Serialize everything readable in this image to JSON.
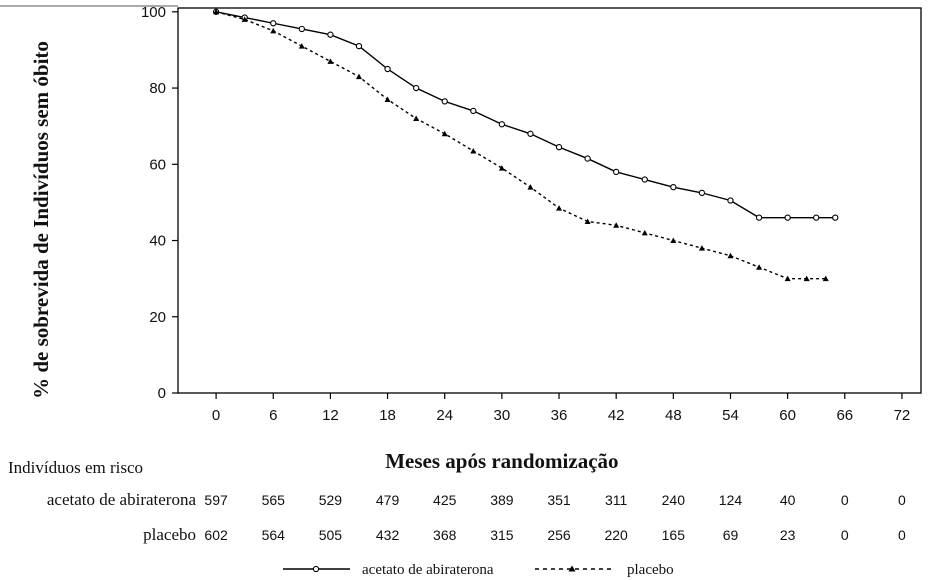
{
  "chart_data": {
    "type": "line",
    "xlabel": "Meses após randomização",
    "ylabel": "% de sobrevida de Indivíduos sem óbito",
    "x_ticks": [
      0,
      6,
      12,
      18,
      24,
      30,
      36,
      42,
      48,
      54,
      60,
      66,
      72
    ],
    "y_ticks": [
      0,
      20,
      40,
      60,
      80,
      100
    ],
    "xlim": [
      -4,
      74
    ],
    "ylim": [
      0,
      101
    ],
    "grid": false,
    "legend_position": "bottom",
    "series": [
      {
        "name": "acetato de abiraterona",
        "line_style": "solid",
        "marker": "circle",
        "color": "#000000",
        "x": [
          0,
          3,
          6,
          9,
          12,
          15,
          18,
          21,
          24,
          27,
          30,
          33,
          36,
          39,
          42,
          45,
          48,
          51,
          54,
          57,
          60,
          63,
          65
        ],
        "y": [
          100,
          98.5,
          97,
          95.5,
          94,
          91,
          85,
          80,
          76.5,
          74,
          70.5,
          68,
          64.5,
          61.5,
          58,
          56,
          54,
          52.5,
          50.5,
          46,
          46,
          46,
          46
        ]
      },
      {
        "name": "placebo",
        "line_style": "dashed",
        "marker": "triangle",
        "color": "#000000",
        "x": [
          0,
          3,
          6,
          9,
          12,
          15,
          18,
          21,
          24,
          27,
          30,
          33,
          36,
          39,
          42,
          45,
          48,
          51,
          54,
          57,
          60,
          62,
          64
        ],
        "y": [
          100,
          98,
          95,
          91,
          87,
          83,
          77,
          72,
          68,
          63.5,
          59,
          54,
          48.5,
          45,
          44,
          42,
          40,
          38,
          36,
          33,
          30,
          30,
          30
        ]
      }
    ],
    "risk_table": {
      "title": "Indivíduos em risco",
      "x": [
        0,
        6,
        12,
        18,
        24,
        30,
        36,
        42,
        48,
        54,
        60,
        66,
        72
      ],
      "rows": [
        {
          "label": "acetato de abiraterona",
          "values": [
            597,
            565,
            529,
            479,
            425,
            389,
            351,
            311,
            240,
            124,
            40,
            0,
            0
          ]
        },
        {
          "label": "placebo",
          "values": [
            602,
            564,
            505,
            432,
            368,
            315,
            256,
            220,
            165,
            69,
            23,
            0,
            0
          ]
        }
      ]
    }
  }
}
